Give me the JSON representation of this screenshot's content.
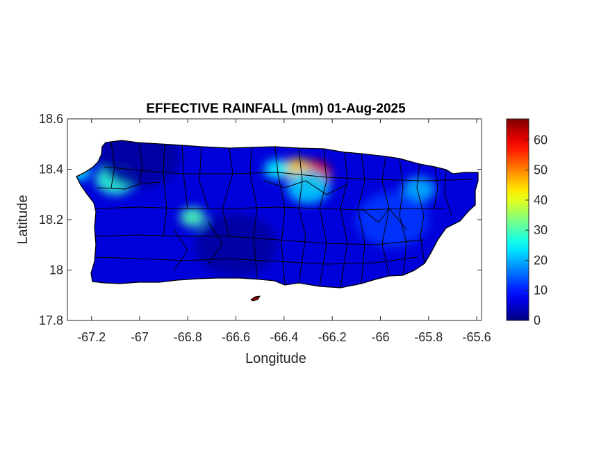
{
  "title": "EFFECTIVE RAINFALL (mm) 01-Aug-2025",
  "x_axis": {
    "label": "Longitude",
    "range": [
      -67.3,
      -65.58
    ],
    "ticks": [
      -67.2,
      -67.0,
      -66.8,
      -66.6,
      -66.4,
      -66.2,
      -66.0,
      -65.8,
      -65.6
    ],
    "tick_labels": [
      "-67.2",
      "-67",
      "-66.8",
      "-66.6",
      "-66.4",
      "-66.2",
      "-66",
      "-65.8",
      "-65.6"
    ]
  },
  "y_axis": {
    "label": "Latitude",
    "range": [
      17.8,
      18.6
    ],
    "ticks": [
      17.8,
      18.0,
      18.2,
      18.4,
      18.6
    ],
    "tick_labels": [
      "17.8",
      "18",
      "18.2",
      "18.4",
      "18.6"
    ]
  },
  "colorbar": {
    "colormap": "jet",
    "range": [
      0,
      67
    ],
    "ticks": [
      0,
      10,
      20,
      30,
      40,
      50,
      60
    ],
    "tick_labels": [
      "0",
      "10",
      "20",
      "30",
      "40",
      "50",
      "60"
    ]
  },
  "colors": {
    "background_ocean": "#ffffff",
    "low_value": "#800000",
    "high_value": "#00008f",
    "boundary_lines": "#000000"
  },
  "map_features": {
    "region": "Puerto Rico",
    "municipal_boundaries": true,
    "grid": false
  },
  "chart_data": {
    "type": "heatmap",
    "title": "EFFECTIVE RAINFALL (mm) 01-Aug-2025",
    "xlabel": "Longitude",
    "ylabel": "Latitude",
    "xlim": [
      -67.3,
      -65.58
    ],
    "ylim": [
      17.8,
      18.6
    ],
    "clim": [
      0,
      67
    ],
    "base_value_mm": 6,
    "notable_areas": [
      {
        "lon": -66.28,
        "lat": 18.38,
        "value_mm": 60
      },
      {
        "lon": -66.35,
        "lat": 18.4,
        "value_mm": 45
      },
      {
        "lon": -66.3,
        "lat": 18.33,
        "value_mm": 22
      },
      {
        "lon": -66.43,
        "lat": 18.4,
        "value_mm": 25
      },
      {
        "lon": -66.78,
        "lat": 18.21,
        "value_mm": 30
      },
      {
        "lon": -67.1,
        "lat": 18.36,
        "value_mm": 28
      },
      {
        "lon": -67.25,
        "lat": 18.39,
        "value_mm": 25
      },
      {
        "lon": -65.84,
        "lat": 18.32,
        "value_mm": 20
      },
      {
        "lon": -65.95,
        "lat": 18.2,
        "value_mm": 12
      },
      {
        "lon": -66.6,
        "lat": 18.1,
        "value_mm": 2
      },
      {
        "lon": -67.0,
        "lat": 18.45,
        "value_mm": 2
      }
    ]
  }
}
